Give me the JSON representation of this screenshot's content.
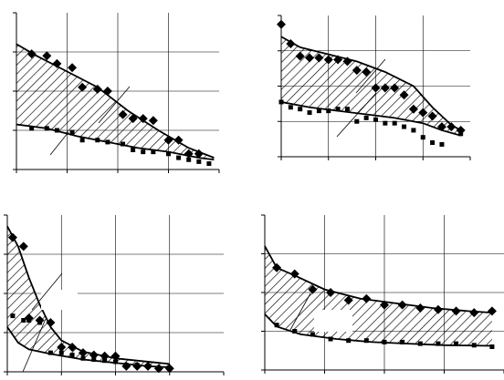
{
  "chart_data": [
    {
      "type": "scatter",
      "title": "",
      "xlabel": "",
      "ylabel": "",
      "xlim": [
        0,
        40
      ],
      "ylim": [
        0,
        4
      ],
      "grid": true,
      "band": {
        "upper": [
          [
            0,
            3.2
          ],
          [
            4,
            2.9
          ],
          [
            10,
            2.5
          ],
          [
            16,
            2.1
          ],
          [
            22,
            1.5
          ],
          [
            28,
            1.0
          ],
          [
            34,
            0.55
          ],
          [
            39,
            0.3
          ]
        ],
        "lower": [
          [
            0,
            1.15
          ],
          [
            6,
            1.05
          ],
          [
            12,
            0.85
          ],
          [
            18,
            0.7
          ],
          [
            24,
            0.55
          ],
          [
            30,
            0.45
          ],
          [
            36,
            0.3
          ],
          [
            39,
            0.25
          ]
        ]
      },
      "series": [
        {
          "marker": "diamond",
          "points": [
            [
              3,
              2.95
            ],
            [
              6,
              2.9
            ],
            [
              8,
              2.7
            ],
            [
              11,
              2.6
            ],
            [
              13,
              2.1
            ],
            [
              16,
              2.05
            ],
            [
              18,
              2.0
            ],
            [
              21,
              1.4
            ],
            [
              23,
              1.3
            ],
            [
              25,
              1.3
            ],
            [
              27,
              1.25
            ],
            [
              30,
              0.75
            ],
            [
              32,
              0.75
            ],
            [
              34,
              0.4
            ],
            [
              36,
              0.4
            ]
          ]
        },
        {
          "marker": "square",
          "points": [
            [
              3,
              1.05
            ],
            [
              6,
              1.05
            ],
            [
              8,
              1.0
            ],
            [
              11,
              0.95
            ],
            [
              13,
              0.75
            ],
            [
              16,
              0.75
            ],
            [
              18,
              0.7
            ],
            [
              21,
              0.65
            ],
            [
              23,
              0.5
            ],
            [
              25,
              0.45
            ],
            [
              27,
              0.45
            ],
            [
              30,
              0.4
            ],
            [
              32,
              0.3
            ],
            [
              34,
              0.25
            ],
            [
              36,
              0.2
            ],
            [
              38,
              0.15
            ]
          ]
        }
      ]
    },
    {
      "type": "scatter",
      "title": "",
      "xlabel": "",
      "ylabel": "",
      "xlim": [
        0,
        40
      ],
      "ylim": [
        0,
        4
      ],
      "grid": true,
      "band": {
        "upper": [
          [
            0,
            3.4
          ],
          [
            4,
            3.1
          ],
          [
            10,
            2.9
          ],
          [
            16,
            2.7
          ],
          [
            22,
            2.4
          ],
          [
            28,
            2.0
          ],
          [
            32,
            1.4
          ],
          [
            36,
            0.9
          ],
          [
            38,
            0.75
          ]
        ],
        "lower": [
          [
            0,
            1.55
          ],
          [
            6,
            1.4
          ],
          [
            12,
            1.3
          ],
          [
            18,
            1.2
          ],
          [
            24,
            1.1
          ],
          [
            30,
            0.95
          ],
          [
            34,
            0.75
          ],
          [
            38,
            0.6
          ]
        ]
      },
      "series": [
        {
          "marker": "diamond",
          "points": [
            [
              0,
              3.75
            ],
            [
              2,
              3.2
            ],
            [
              4,
              2.85
            ],
            [
              6,
              2.8
            ],
            [
              8,
              2.8
            ],
            [
              10,
              2.75
            ],
            [
              12,
              2.75
            ],
            [
              14,
              2.7
            ],
            [
              16,
              2.45
            ],
            [
              18,
              2.4
            ],
            [
              20,
              1.95
            ],
            [
              22,
              1.95
            ],
            [
              24,
              1.95
            ],
            [
              26,
              1.75
            ],
            [
              28,
              1.35
            ],
            [
              30,
              1.25
            ],
            [
              32,
              1.15
            ],
            [
              34,
              0.85
            ],
            [
              36,
              0.85
            ],
            [
              38,
              0.75
            ]
          ]
        },
        {
          "marker": "square",
          "points": [
            [
              0,
              1.55
            ],
            [
              2,
              1.4
            ],
            [
              4,
              1.35
            ],
            [
              6,
              1.25
            ],
            [
              8,
              1.3
            ],
            [
              10,
              1.3
            ],
            [
              12,
              1.35
            ],
            [
              14,
              1.35
            ],
            [
              16,
              1.0
            ],
            [
              18,
              1.1
            ],
            [
              20,
              1.05
            ],
            [
              22,
              0.95
            ],
            [
              24,
              0.95
            ],
            [
              26,
              0.85
            ],
            [
              28,
              0.75
            ],
            [
              30,
              0.55
            ],
            [
              32,
              0.4
            ],
            [
              34,
              0.35
            ],
            [
              38,
              0.65
            ]
          ]
        }
      ]
    },
    {
      "type": "scatter",
      "title": "",
      "xlabel": "",
      "ylabel": "",
      "xlim": [
        0,
        40
      ],
      "ylim": [
        0,
        7
      ],
      "grid": true,
      "band": {
        "upper": [
          [
            0,
            6.5
          ],
          [
            2,
            5.6
          ],
          [
            4,
            4.2
          ],
          [
            6,
            3.0
          ],
          [
            8,
            2.0
          ],
          [
            10,
            1.4
          ],
          [
            14,
            0.9
          ],
          [
            20,
            0.6
          ],
          [
            26,
            0.45
          ],
          [
            30,
            0.35
          ]
        ],
        "lower": [
          [
            0,
            2.0
          ],
          [
            2,
            1.3
          ],
          [
            4,
            1.0
          ],
          [
            8,
            0.8
          ],
          [
            14,
            0.55
          ],
          [
            20,
            0.4
          ],
          [
            26,
            0.25
          ],
          [
            30,
            0.2
          ]
        ]
      },
      "series": [
        {
          "marker": "diamond",
          "points": [
            [
              1,
              6.0
            ],
            [
              3,
              5.6
            ],
            [
              4,
              2.4
            ],
            [
              6,
              2.3
            ],
            [
              8,
              2.2
            ],
            [
              10,
              1.1
            ],
            [
              12,
              1.1
            ],
            [
              14,
              0.85
            ],
            [
              16,
              0.75
            ],
            [
              18,
              0.7
            ],
            [
              20,
              0.7
            ],
            [
              22,
              0.25
            ],
            [
              24,
              0.25
            ],
            [
              26,
              0.25
            ],
            [
              28,
              0.15
            ],
            [
              30,
              0.15
            ]
          ]
        },
        {
          "marker": "square",
          "points": [
            [
              1,
              2.5
            ],
            [
              3,
              2.3
            ],
            [
              4,
              2.3
            ],
            [
              6,
              2.2
            ],
            [
              8,
              0.85
            ],
            [
              10,
              0.85
            ],
            [
              12,
              0.75
            ],
            [
              14,
              0.6
            ],
            [
              16,
              0.55
            ],
            [
              18,
              0.5
            ],
            [
              20,
              0.45
            ],
            [
              22,
              0.3
            ],
            [
              24,
              0.3
            ],
            [
              26,
              0.25
            ],
            [
              28,
              0.15
            ]
          ]
        }
      ]
    },
    {
      "type": "scatter",
      "title": "",
      "xlabel": "",
      "ylabel": "",
      "xlim": [
        0,
        40
      ],
      "ylim": [
        0,
        5
      ],
      "grid": true,
      "band": {
        "upper": [
          [
            0,
            4.0
          ],
          [
            2,
            3.3
          ],
          [
            5,
            3.05
          ],
          [
            10,
            2.6
          ],
          [
            16,
            2.3
          ],
          [
            22,
            2.15
          ],
          [
            28,
            2.0
          ],
          [
            34,
            1.9
          ],
          [
            38,
            1.85
          ]
        ],
        "lower": [
          [
            0,
            1.8
          ],
          [
            2,
            1.4
          ],
          [
            6,
            1.15
          ],
          [
            12,
            1.0
          ],
          [
            18,
            0.9
          ],
          [
            24,
            0.85
          ],
          [
            30,
            0.8
          ],
          [
            38,
            0.78
          ]
        ]
      },
      "series": [
        {
          "marker": "diamond",
          "points": [
            [
              2,
              3.3
            ],
            [
              5,
              3.1
            ],
            [
              8,
              2.6
            ],
            [
              11,
              2.5
            ],
            [
              14,
              2.25
            ],
            [
              17,
              2.3
            ],
            [
              20,
              2.1
            ],
            [
              23,
              2.1
            ],
            [
              26,
              2.0
            ],
            [
              29,
              1.95
            ],
            [
              32,
              1.9
            ],
            [
              35,
              1.85
            ],
            [
              38,
              1.9
            ]
          ]
        },
        {
          "marker": "square",
          "points": [
            [
              2,
              1.45
            ],
            [
              5,
              1.25
            ],
            [
              8,
              1.15
            ],
            [
              11,
              1.0
            ],
            [
              14,
              0.95
            ],
            [
              17,
              0.95
            ],
            [
              20,
              0.9
            ],
            [
              23,
              0.9
            ],
            [
              26,
              0.85
            ],
            [
              29,
              0.85
            ],
            [
              32,
              0.85
            ],
            [
              35,
              0.8
            ],
            [
              38,
              0.75
            ]
          ]
        }
      ]
    }
  ]
}
